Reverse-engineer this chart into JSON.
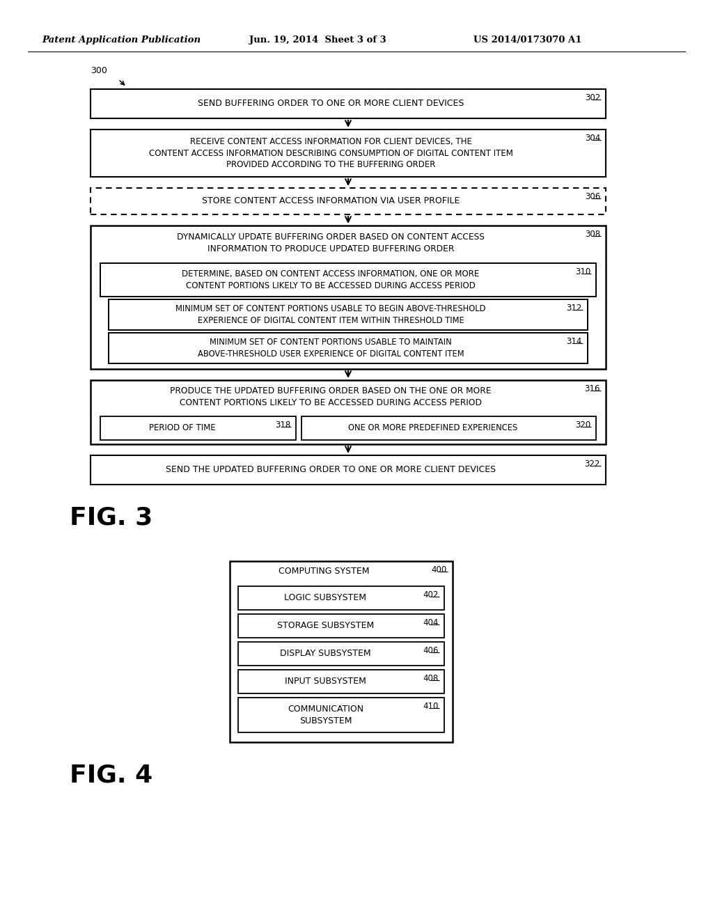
{
  "header_left": "Patent Application Publication",
  "header_mid": "Jun. 19, 2014  Sheet 3 of 3",
  "header_right": "US 2014/0173070 A1",
  "bg_color": "#ffffff"
}
